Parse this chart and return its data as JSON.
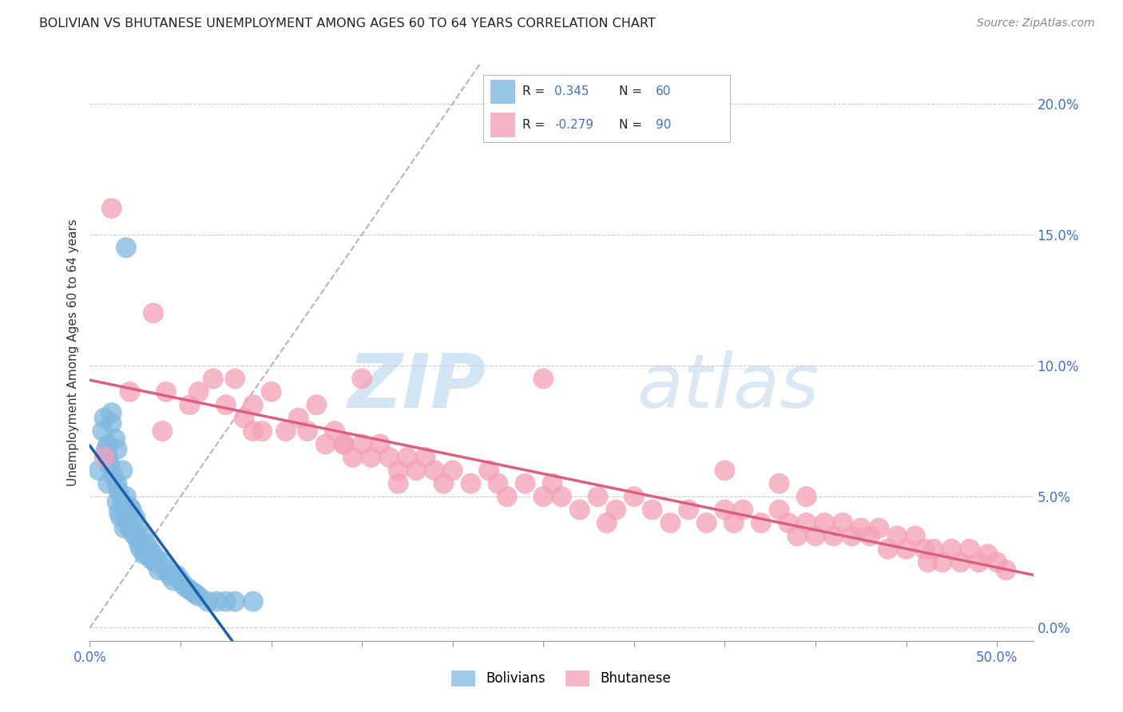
{
  "title": "BOLIVIAN VS BHUTANESE UNEMPLOYMENT AMONG AGES 60 TO 64 YEARS CORRELATION CHART",
  "source": "Source: ZipAtlas.com",
  "ylabel": "Unemployment Among Ages 60 to 64 years",
  "xlim": [
    0.0,
    0.52
  ],
  "ylim": [
    -0.005,
    0.215
  ],
  "xticks": [
    0.0,
    0.05,
    0.1,
    0.15,
    0.2,
    0.25,
    0.3,
    0.35,
    0.4,
    0.45,
    0.5
  ],
  "yticks": [
    0.0,
    0.05,
    0.1,
    0.15,
    0.2
  ],
  "bolivians_color": "#80b8e0",
  "bhutanese_color": "#f4a0b8",
  "bolivians_line_color": "#1a5fa8",
  "bhutanese_line_color": "#d96080",
  "ref_line_color": "#aaaacc",
  "background_color": "#ffffff",
  "grid_color": "#cccccc",
  "watermark_zip": "ZIP",
  "watermark_atlas": "atlas",
  "bolivians_x": [
    0.005,
    0.007,
    0.008,
    0.009,
    0.01,
    0.01,
    0.01,
    0.011,
    0.012,
    0.012,
    0.013,
    0.014,
    0.015,
    0.015,
    0.015,
    0.016,
    0.016,
    0.017,
    0.018,
    0.018,
    0.019,
    0.02,
    0.02,
    0.021,
    0.022,
    0.022,
    0.023,
    0.024,
    0.025,
    0.025,
    0.026,
    0.027,
    0.028,
    0.029,
    0.03,
    0.031,
    0.032,
    0.033,
    0.034,
    0.035,
    0.036,
    0.037,
    0.038,
    0.04,
    0.042,
    0.044,
    0.046,
    0.048,
    0.05,
    0.052,
    0.054,
    0.056,
    0.058,
    0.06,
    0.065,
    0.07,
    0.075,
    0.08,
    0.09,
    0.02
  ],
  "bolivians_y": [
    0.06,
    0.075,
    0.08,
    0.068,
    0.055,
    0.07,
    0.065,
    0.062,
    0.078,
    0.082,
    0.058,
    0.072,
    0.048,
    0.055,
    0.068,
    0.044,
    0.052,
    0.042,
    0.048,
    0.06,
    0.038,
    0.042,
    0.05,
    0.04,
    0.046,
    0.038,
    0.045,
    0.036,
    0.042,
    0.035,
    0.038,
    0.032,
    0.03,
    0.035,
    0.028,
    0.032,
    0.028,
    0.03,
    0.026,
    0.028,
    0.025,
    0.026,
    0.022,
    0.025,
    0.022,
    0.02,
    0.018,
    0.02,
    0.018,
    0.016,
    0.015,
    0.014,
    0.013,
    0.012,
    0.01,
    0.01,
    0.01,
    0.01,
    0.01,
    0.145
  ],
  "bhutanese_x": [
    0.008,
    0.012,
    0.022,
    0.035,
    0.042,
    0.055,
    0.06,
    0.068,
    0.075,
    0.08,
    0.085,
    0.09,
    0.095,
    0.1,
    0.108,
    0.115,
    0.12,
    0.125,
    0.13,
    0.135,
    0.14,
    0.145,
    0.15,
    0.155,
    0.16,
    0.165,
    0.17,
    0.175,
    0.18,
    0.185,
    0.19,
    0.195,
    0.2,
    0.21,
    0.22,
    0.225,
    0.23,
    0.24,
    0.25,
    0.255,
    0.26,
    0.27,
    0.28,
    0.29,
    0.3,
    0.31,
    0.32,
    0.33,
    0.34,
    0.35,
    0.355,
    0.36,
    0.37,
    0.38,
    0.385,
    0.39,
    0.395,
    0.4,
    0.405,
    0.41,
    0.415,
    0.42,
    0.425,
    0.43,
    0.435,
    0.44,
    0.445,
    0.45,
    0.455,
    0.46,
    0.462,
    0.465,
    0.47,
    0.475,
    0.48,
    0.485,
    0.49,
    0.495,
    0.5,
    0.505,
    0.15,
    0.17,
    0.25,
    0.35,
    0.395,
    0.04,
    0.09,
    0.14,
    0.285,
    0.38
  ],
  "bhutanese_y": [
    0.065,
    0.16,
    0.09,
    0.12,
    0.09,
    0.085,
    0.09,
    0.095,
    0.085,
    0.095,
    0.08,
    0.085,
    0.075,
    0.09,
    0.075,
    0.08,
    0.075,
    0.085,
    0.07,
    0.075,
    0.07,
    0.065,
    0.07,
    0.065,
    0.07,
    0.065,
    0.06,
    0.065,
    0.06,
    0.065,
    0.06,
    0.055,
    0.06,
    0.055,
    0.06,
    0.055,
    0.05,
    0.055,
    0.05,
    0.055,
    0.05,
    0.045,
    0.05,
    0.045,
    0.05,
    0.045,
    0.04,
    0.045,
    0.04,
    0.045,
    0.04,
    0.045,
    0.04,
    0.045,
    0.04,
    0.035,
    0.04,
    0.035,
    0.04,
    0.035,
    0.04,
    0.035,
    0.038,
    0.035,
    0.038,
    0.03,
    0.035,
    0.03,
    0.035,
    0.03,
    0.025,
    0.03,
    0.025,
    0.03,
    0.025,
    0.03,
    0.025,
    0.028,
    0.025,
    0.022,
    0.095,
    0.055,
    0.095,
    0.06,
    0.05,
    0.075,
    0.075,
    0.07,
    0.04,
    0.055
  ]
}
